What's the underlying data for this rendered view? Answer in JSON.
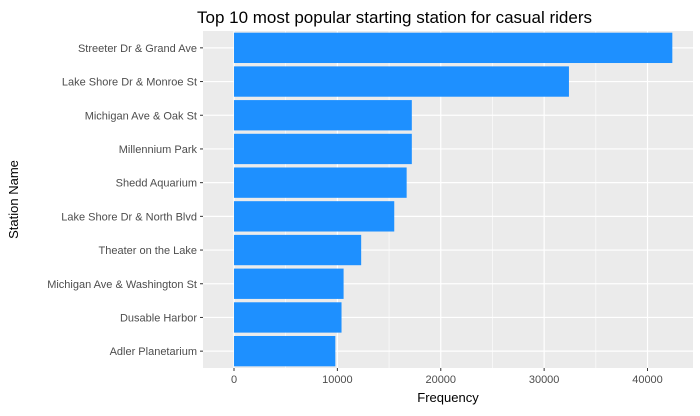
{
  "chart_data": {
    "type": "bar",
    "orientation": "horizontal",
    "title": "Top 10 most popular starting station for casual riders",
    "xlabel": "Frequency",
    "ylabel": "Station Name",
    "categories": [
      "Streeter Dr & Grand Ave",
      "Lake Shore Dr & Monroe St",
      "Michigan Ave & Oak St",
      "Millennium Park",
      "Shedd Aquarium",
      "Lake Shore Dr & North Blvd",
      "Theater on the Lake",
      "Michigan Ave & Washington St",
      "Dusable Harbor",
      "Adler Planetarium"
    ],
    "values": [
      42400,
      32400,
      17200,
      17200,
      16700,
      15500,
      12300,
      10600,
      10400,
      9800
    ],
    "xlim": [
      -3000,
      44400
    ],
    "xticks": [
      0,
      10000,
      20000,
      30000,
      40000
    ],
    "xtick_labels": [
      "0",
      "10000",
      "20000",
      "30000",
      "40000"
    ],
    "grid": true,
    "bar_color": "#1E90FF",
    "panel_background": "#EBEBEB",
    "grid_color": "#FFFFFF"
  }
}
